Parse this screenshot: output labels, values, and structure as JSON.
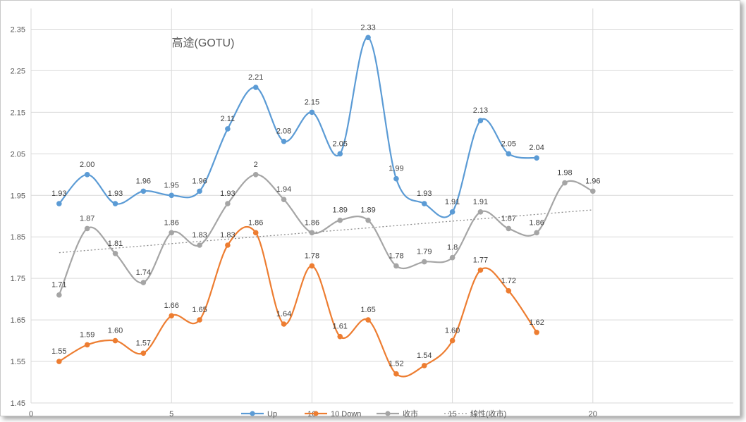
{
  "chart_data": {
    "type": "line",
    "title": "高途(GOTU)",
    "xlabel": "",
    "ylabel": "",
    "xlim": [
      0,
      25
    ],
    "ylim": [
      1.45,
      2.4
    ],
    "x_ticks": [
      0,
      5,
      10,
      15,
      20
    ],
    "y_ticks": [
      1.45,
      1.55,
      1.65,
      1.75,
      1.85,
      1.95,
      2.05,
      2.15,
      2.25,
      2.35
    ],
    "grid": "vertical and horizontal",
    "legend_position": "bottom",
    "series": [
      {
        "name": "Up",
        "color": "#5B9BD5",
        "x": [
          1,
          2,
          3,
          4,
          5,
          6,
          7,
          8,
          9,
          10,
          11,
          12,
          13,
          14,
          15,
          16,
          17,
          18
        ],
        "values": [
          1.93,
          2.0,
          1.93,
          1.96,
          1.95,
          1.96,
          2.11,
          2.21,
          2.08,
          2.15,
          2.05,
          2.33,
          1.99,
          1.93,
          1.91,
          2.13,
          2.05,
          2.04
        ],
        "labels": [
          "1.93",
          "2.00",
          "1.93",
          "1.96",
          "1.95",
          "1.96",
          "2.11",
          "2.21",
          "2.08",
          "2.15",
          "2.05",
          "2.33",
          "1.99",
          "1.93",
          "1.91",
          "2.13",
          "2.05",
          "2.04"
        ],
        "smooth": true,
        "markers": true
      },
      {
        "name": "10 Down",
        "color": "#ED7D31",
        "x": [
          1,
          2,
          3,
          4,
          5,
          6,
          7,
          8,
          9,
          10,
          11,
          12,
          13,
          14,
          15,
          16,
          17,
          18
        ],
        "values": [
          1.55,
          1.59,
          1.6,
          1.57,
          1.66,
          1.65,
          1.83,
          1.86,
          1.64,
          1.78,
          1.61,
          1.65,
          1.52,
          1.54,
          1.6,
          1.77,
          1.72,
          1.62
        ],
        "labels": [
          "1.55",
          "1.59",
          "1.60",
          "1.57",
          "1.66",
          "1.65",
          "1.83",
          "1.86",
          "1.64",
          "1.78",
          "1.61",
          "1.65",
          "1.52",
          "1.54",
          "1.60",
          "1.77",
          "1.72",
          "1.62"
        ],
        "smooth": true,
        "markers": true
      },
      {
        "name": "收市",
        "color": "#A5A5A5",
        "x": [
          1,
          2,
          3,
          4,
          5,
          6,
          7,
          8,
          9,
          10,
          11,
          12,
          13,
          14,
          15,
          16,
          17,
          18,
          19,
          20
        ],
        "values": [
          1.71,
          1.87,
          1.81,
          1.74,
          1.86,
          1.83,
          1.93,
          2.0,
          1.94,
          1.86,
          1.89,
          1.89,
          1.78,
          1.79,
          1.8,
          1.91,
          1.87,
          1.86,
          1.98,
          1.96
        ],
        "labels": [
          "1.71",
          "1.87",
          "1.81",
          "1.74",
          "1.86",
          "1.83",
          "1.93",
          "2",
          "1.94",
          "1.86",
          "1.89",
          "1.89",
          "1.78",
          "1.79",
          "1.8",
          "1.91",
          "1.87",
          "1.86",
          "1.98",
          "1.96"
        ],
        "smooth": true,
        "markers": true
      },
      {
        "name": "線性(收市)",
        "color": "#A5A5A5",
        "type": "trendline",
        "dashed": true,
        "x": [
          1,
          20
        ],
        "values": [
          1.812,
          1.915
        ],
        "markers": false
      }
    ]
  }
}
